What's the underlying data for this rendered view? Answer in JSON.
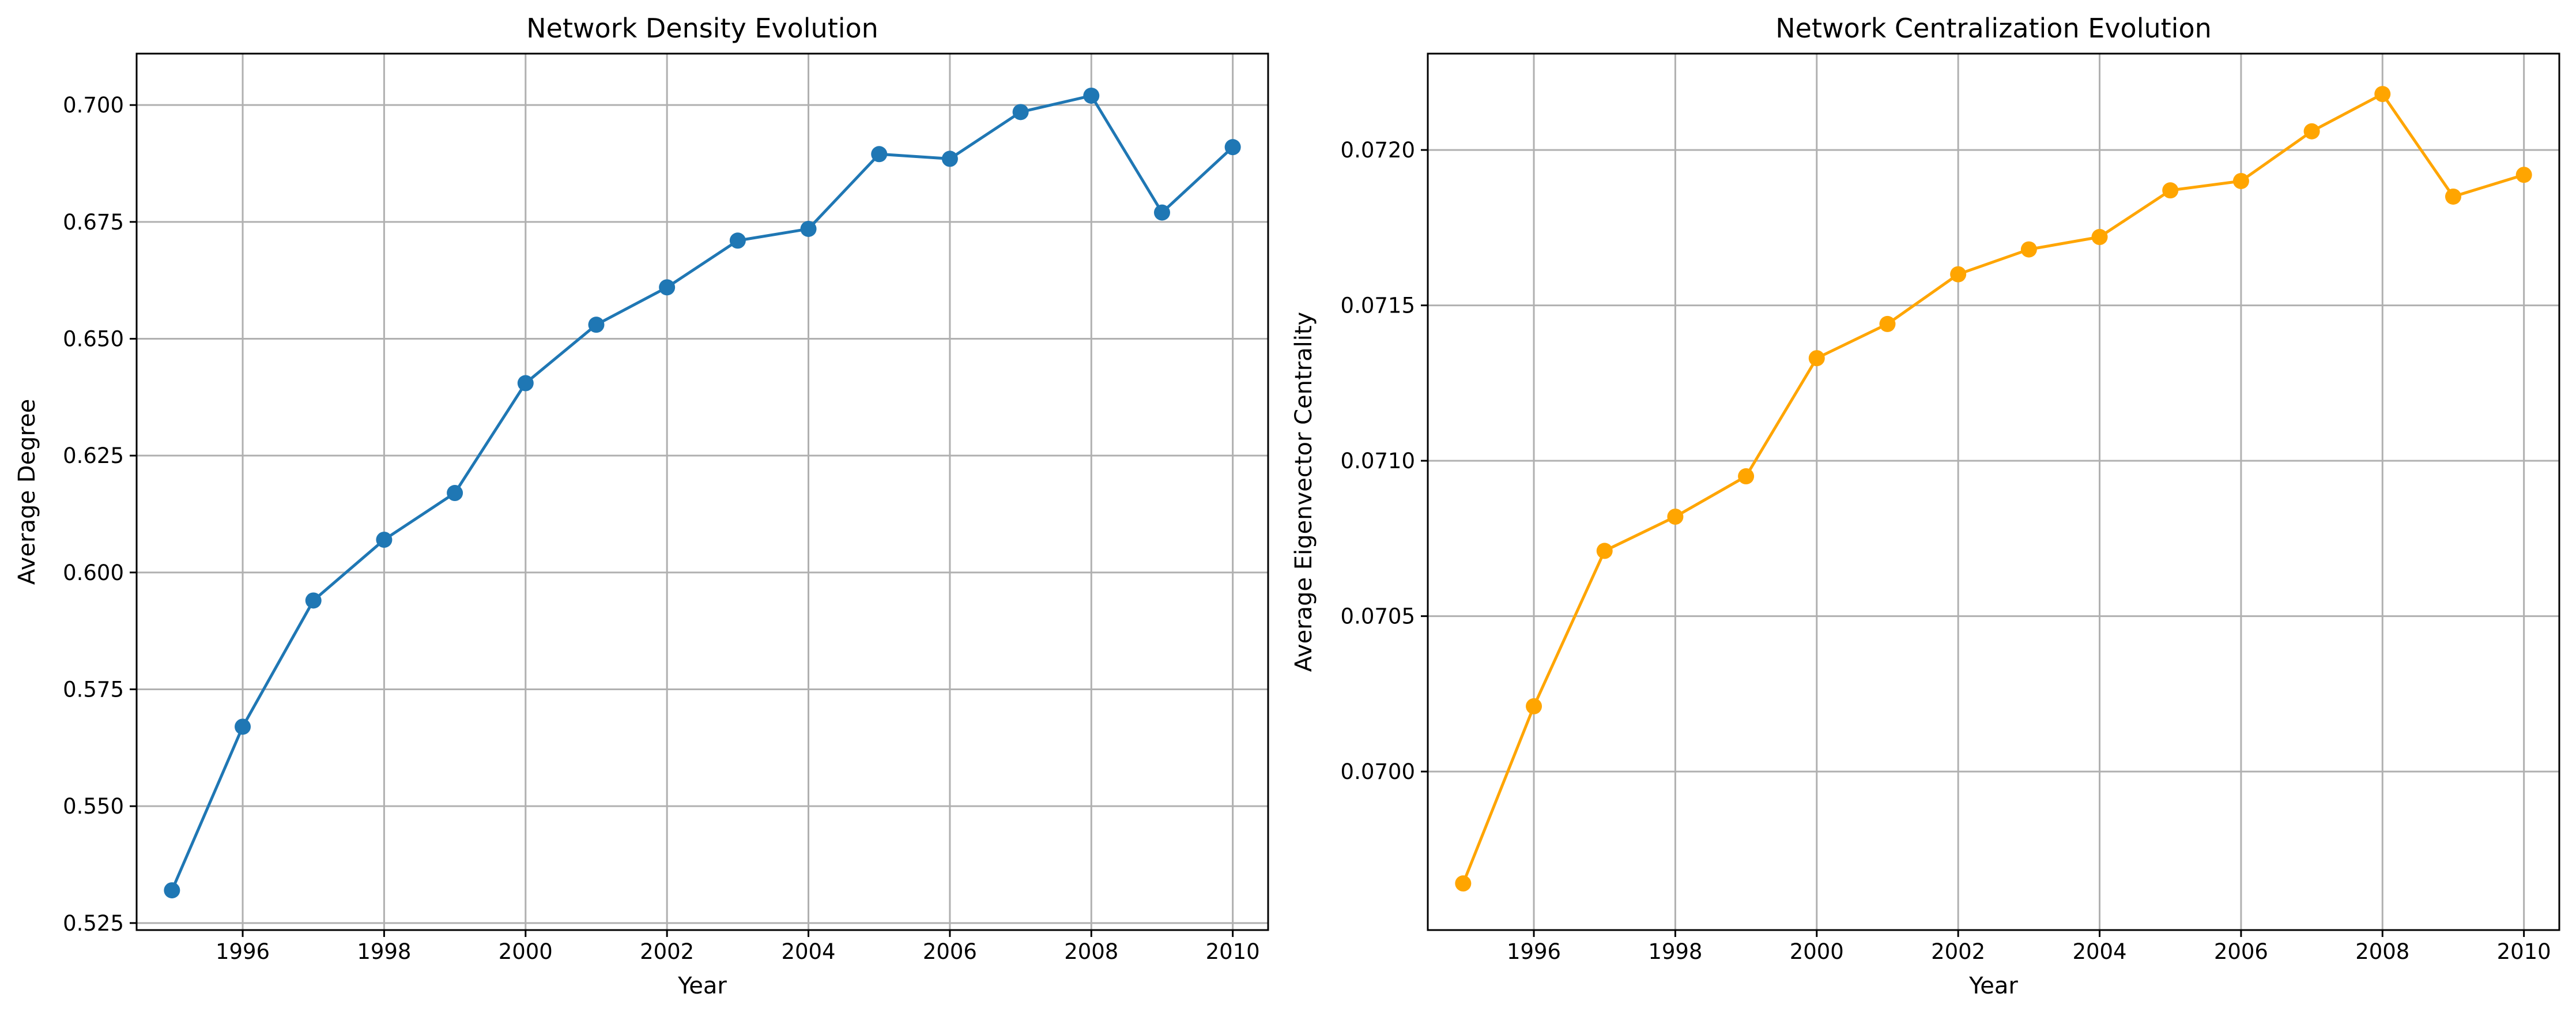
{
  "chart_data": [
    {
      "type": "line",
      "title": "Network Density Evolution",
      "xlabel": "Year",
      "ylabel": "Average Degree",
      "xlim": [
        1994.5,
        2010.5
      ],
      "ylim": [
        0.5235,
        0.711
      ],
      "xticks": [
        1996,
        1998,
        2000,
        2002,
        2004,
        2006,
        2008,
        2010
      ],
      "yticks": [
        0.525,
        0.55,
        0.575,
        0.6,
        0.625,
        0.65,
        0.675,
        0.7
      ],
      "ytick_decimals": 3,
      "grid": true,
      "color": "#1f77b4",
      "x": [
        1995,
        1996,
        1997,
        1998,
        1999,
        2000,
        2001,
        2002,
        2003,
        2004,
        2005,
        2006,
        2007,
        2008,
        2009,
        2010
      ],
      "y": [
        0.532,
        0.567,
        0.594,
        0.607,
        0.617,
        0.6405,
        0.653,
        0.661,
        0.671,
        0.6735,
        0.6895,
        0.6885,
        0.6985,
        0.702,
        0.677,
        0.691
      ]
    },
    {
      "type": "line",
      "title": "Network Centralization Evolution",
      "xlabel": "Year",
      "ylabel": "Average Eigenvector Centrality",
      "xlim": [
        1994.5,
        2010.5
      ],
      "ylim": [
        0.06949,
        0.07231
      ],
      "xticks": [
        1996,
        1998,
        2000,
        2002,
        2004,
        2006,
        2008,
        2010
      ],
      "yticks": [
        0.07,
        0.0705,
        0.071,
        0.0715,
        0.072
      ],
      "ytick_decimals": 4,
      "grid": true,
      "color": "#ffa500",
      "x": [
        1995,
        1996,
        1997,
        1998,
        1999,
        2000,
        2001,
        2002,
        2003,
        2004,
        2005,
        2006,
        2007,
        2008,
        2009,
        2010
      ],
      "y": [
        0.06964,
        0.07021,
        0.07071,
        0.07082,
        0.07095,
        0.07133,
        0.07144,
        0.0716,
        0.07168,
        0.07172,
        0.07187,
        0.0719,
        0.07206,
        0.07218,
        0.07185,
        0.07192
      ]
    }
  ]
}
